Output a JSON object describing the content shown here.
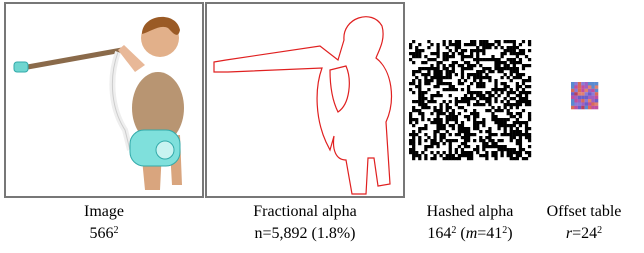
{
  "figures": [
    {
      "caption_lines": [
        [
          {
            "text": "Image"
          }
        ],
        [
          {
            "text": "566"
          },
          {
            "text": "2",
            "style": "sup"
          }
        ]
      ]
    },
    {
      "caption_lines": [
        [
          {
            "text": "Fractional alpha"
          }
        ],
        [
          {
            "text": "n=5,892 (1.8%)"
          }
        ]
      ]
    },
    {
      "caption_lines": [
        [
          {
            "text": "Hashed alpha"
          }
        ],
        [
          {
            "text": "164"
          },
          {
            "text": "2",
            "style": "sup"
          },
          {
            "text": " ("
          },
          {
            "text": "m",
            "style": "italic"
          },
          {
            "text": "=41"
          },
          {
            "text": "2",
            "style": "sup"
          },
          {
            "text": ")"
          }
        ]
      ]
    },
    {
      "caption_lines": [
        [
          {
            "text": "Offset table"
          }
        ],
        [
          {
            "text": "r",
            "style": "italic"
          },
          {
            "text": "=24"
          },
          {
            "text": "2",
            "style": "sup"
          }
        ]
      ]
    }
  ]
}
